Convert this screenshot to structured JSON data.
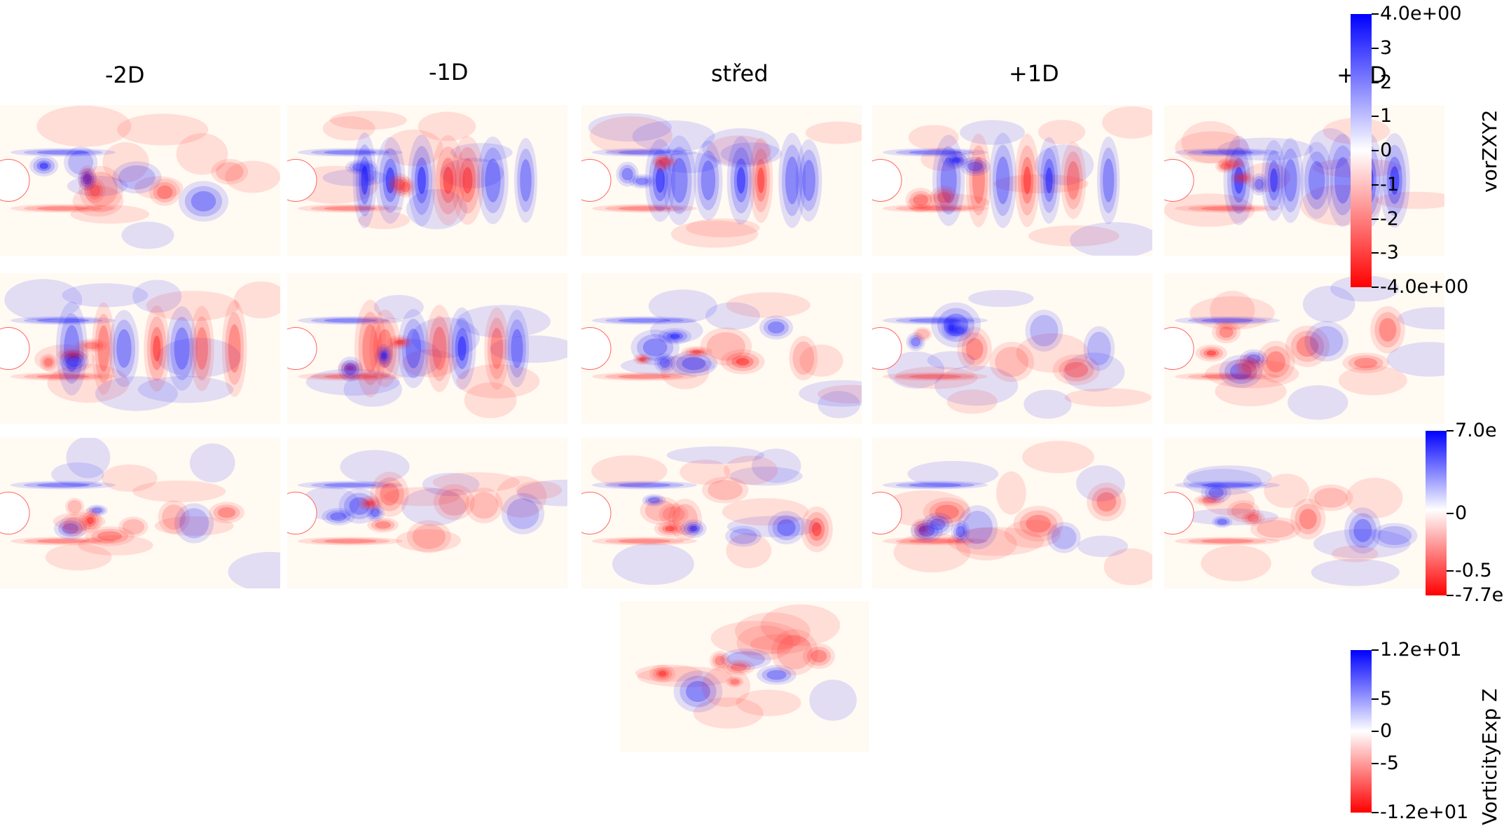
{
  "columns": [
    "-2D",
    "-1D",
    "střed",
    "+1D",
    "+2D"
  ],
  "colorbars": {
    "vor": {
      "title": "vorZXY2",
      "ticks": [
        "4.0e+00",
        "3",
        "2",
        "1",
        "0",
        "-1",
        "-2",
        "-3",
        "-4.0e+00"
      ],
      "max_color": "#0000ff",
      "min_color": "#ff0000",
      "mid_color": "#ffffff"
    },
    "row3": {
      "ticks": [
        "7.0e",
        "0",
        "-0.5",
        "-7.7e"
      ],
      "max_color": "#0000ff",
      "min_color": "#ff0000"
    },
    "exp": {
      "title": "VorticityExp Z",
      "ticks": [
        "1.2e+01",
        "5",
        "0",
        "-5",
        "-1.2e+01"
      ],
      "max_color": "#0000ff",
      "min_color": "#ff0000"
    }
  },
  "colors": {
    "positive": "#1010ff",
    "negative": "#ff1a1a",
    "background": "#fffaf2"
  }
}
